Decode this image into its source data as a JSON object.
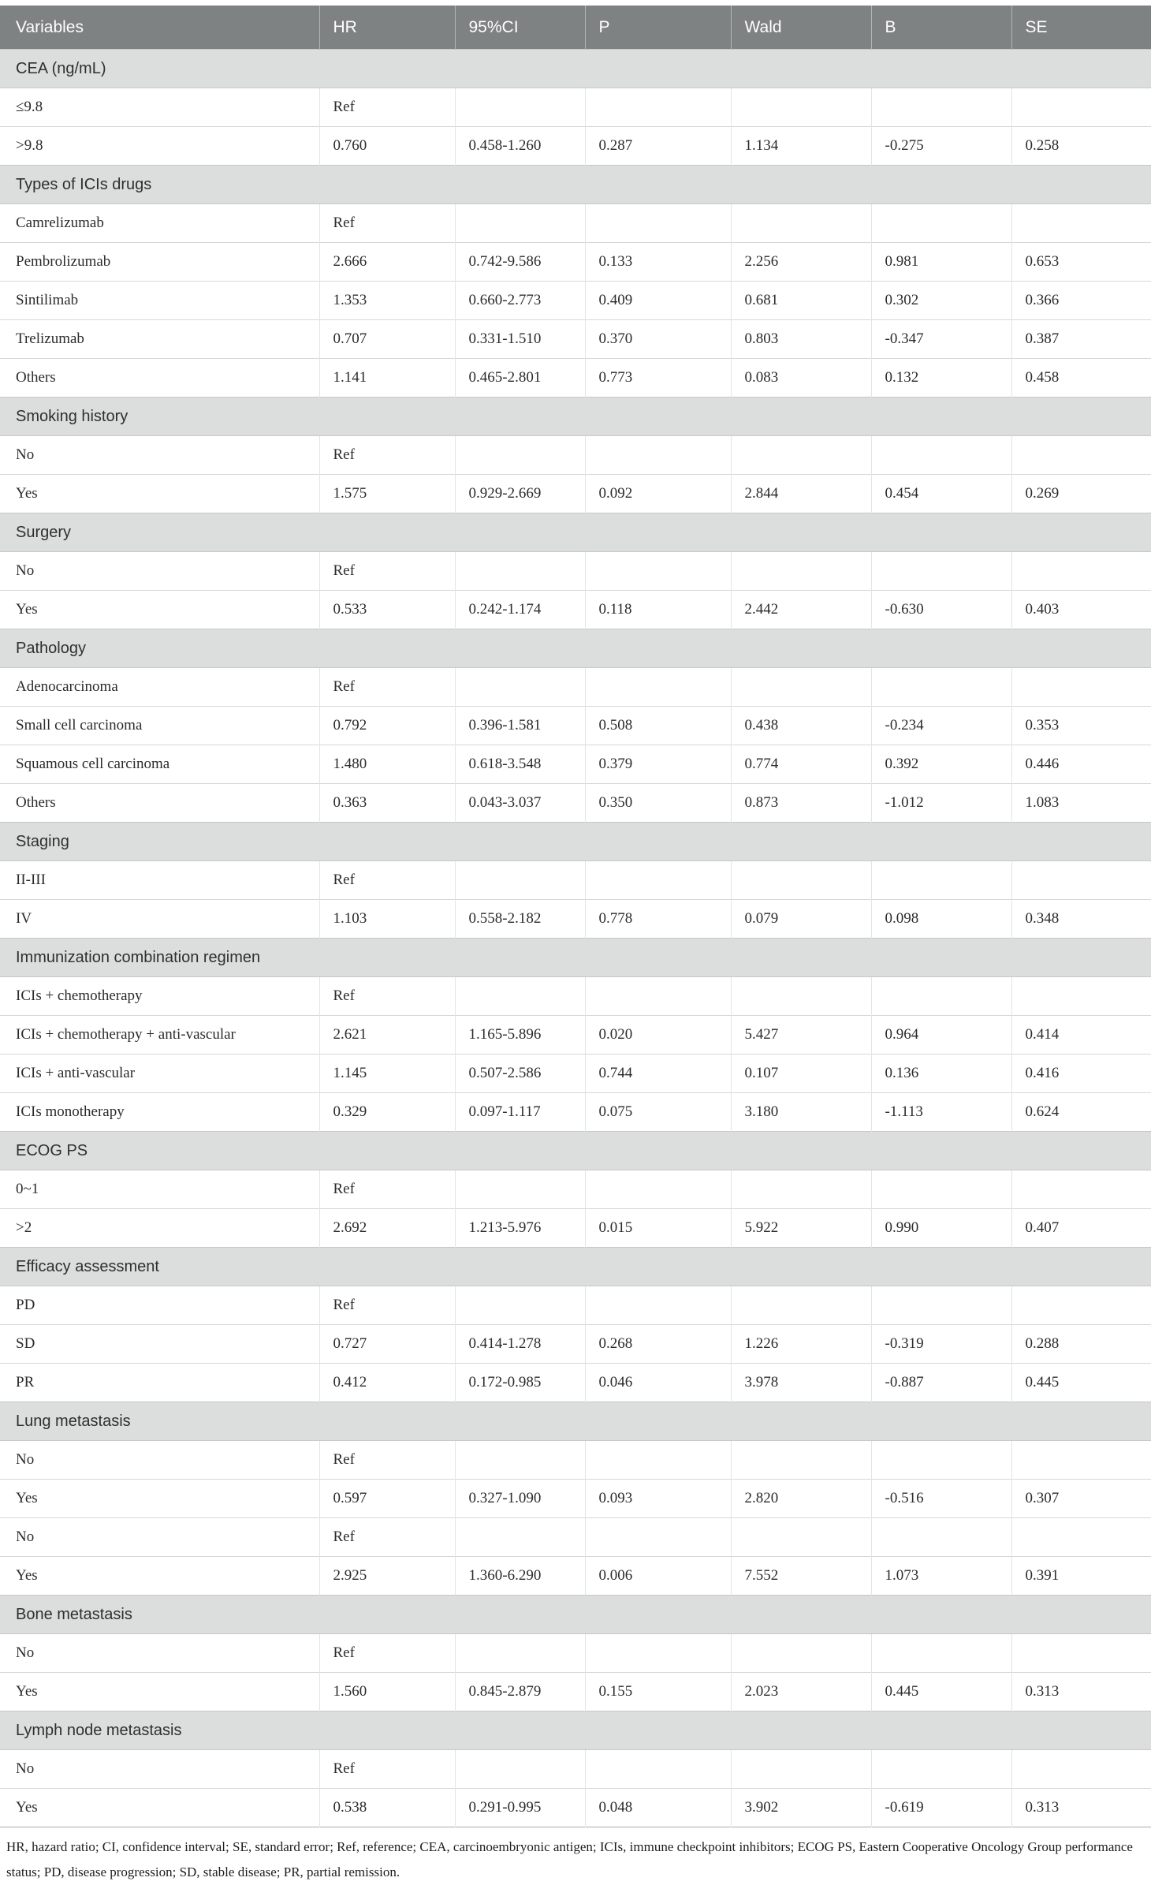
{
  "colors": {
    "header_bg": "#7e8283",
    "header_text": "#ffffff",
    "section_bg": "#dcdddd",
    "text": "#2b2b2b"
  },
  "table": {
    "columns": [
      "Variables",
      "HR",
      "95%CI",
      "P",
      "Wald",
      "B",
      "SE"
    ],
    "sections": [
      {
        "header": "CEA (ng/mL)",
        "rows": [
          [
            "≤9.8",
            "Ref",
            "",
            "",
            "",
            "",
            ""
          ],
          [
            ">9.8",
            "0.760",
            "0.458-1.260",
            "0.287",
            "1.134",
            "-0.275",
            "0.258"
          ]
        ]
      },
      {
        "header": "Types of ICIs drugs",
        "rows": [
          [
            "Camrelizumab",
            "Ref",
            "",
            "",
            "",
            "",
            ""
          ],
          [
            "Pembrolizumab",
            "2.666",
            "0.742-9.586",
            "0.133",
            "2.256",
            "0.981",
            "0.653"
          ],
          [
            "Sintilimab",
            "1.353",
            "0.660-2.773",
            "0.409",
            "0.681",
            "0.302",
            "0.366"
          ],
          [
            "Trelizumab",
            "0.707",
            "0.331-1.510",
            "0.370",
            "0.803",
            "-0.347",
            "0.387"
          ],
          [
            "Others",
            "1.141",
            "0.465-2.801",
            "0.773",
            "0.083",
            "0.132",
            "0.458"
          ]
        ]
      },
      {
        "header": "Smoking history",
        "rows": [
          [
            "No",
            "Ref",
            "",
            "",
            "",
            "",
            ""
          ],
          [
            "Yes",
            "1.575",
            "0.929-2.669",
            "0.092",
            "2.844",
            "0.454",
            "0.269"
          ]
        ]
      },
      {
        "header": "Surgery",
        "rows": [
          [
            "No",
            "Ref",
            "",
            "",
            "",
            "",
            ""
          ],
          [
            "Yes",
            "0.533",
            "0.242-1.174",
            "0.118",
            "2.442",
            "-0.630",
            "0.403"
          ]
        ]
      },
      {
        "header": "Pathology",
        "rows": [
          [
            "Adenocarcinoma",
            "Ref",
            "",
            "",
            "",
            "",
            ""
          ],
          [
            "Small cell carcinoma",
            "0.792",
            "0.396-1.581",
            "0.508",
            "0.438",
            "-0.234",
            "0.353"
          ],
          [
            "Squamous cell carcinoma",
            "1.480",
            "0.618-3.548",
            "0.379",
            "0.774",
            "0.392",
            "0.446"
          ],
          [
            "Others",
            "0.363",
            "0.043-3.037",
            "0.350",
            "0.873",
            "-1.012",
            "1.083"
          ]
        ]
      },
      {
        "header": "Staging",
        "rows": [
          [
            "II-III",
            "Ref",
            "",
            "",
            "",
            "",
            ""
          ],
          [
            "IV",
            "1.103",
            "0.558-2.182",
            "0.778",
            "0.079",
            "0.098",
            "0.348"
          ]
        ]
      },
      {
        "header": "Immunization combination regimen",
        "rows": [
          [
            "ICIs + chemotherapy",
            "Ref",
            "",
            "",
            "",
            "",
            ""
          ],
          [
            "ICIs + chemotherapy + anti-vascular",
            "2.621",
            "1.165-5.896",
            "0.020",
            "5.427",
            "0.964",
            "0.414"
          ],
          [
            "ICIs + anti-vascular",
            "1.145",
            "0.507-2.586",
            "0.744",
            "0.107",
            "0.136",
            "0.416"
          ],
          [
            "ICIs monotherapy",
            "0.329",
            "0.097-1.117",
            "0.075",
            "3.180",
            "-1.113",
            "0.624"
          ]
        ]
      },
      {
        "header": "ECOG PS",
        "rows": [
          [
            "0~1",
            "Ref",
            "",
            "",
            "",
            "",
            ""
          ],
          [
            ">2",
            "2.692",
            "1.213-5.976",
            "0.015",
            "5.922",
            "0.990",
            "0.407"
          ]
        ]
      },
      {
        "header": "Efficacy assessment",
        "rows": [
          [
            "PD",
            "Ref",
            "",
            "",
            "",
            "",
            ""
          ],
          [
            "SD",
            "0.727",
            "0.414-1.278",
            "0.268",
            "1.226",
            "-0.319",
            "0.288"
          ],
          [
            "PR",
            "0.412",
            "0.172-0.985",
            "0.046",
            "3.978",
            "-0.887",
            "0.445"
          ]
        ]
      },
      {
        "header": "Lung metastasis",
        "rows": [
          [
            "No",
            "Ref",
            "",
            "",
            "",
            "",
            ""
          ],
          [
            "Yes",
            "0.597",
            "0.327-1.090",
            "0.093",
            "2.820",
            "-0.516",
            "0.307"
          ],
          [
            "No",
            "Ref",
            "",
            "",
            "",
            "",
            ""
          ],
          [
            "Yes",
            "2.925",
            "1.360-6.290",
            "0.006",
            "7.552",
            "1.073",
            "0.391"
          ]
        ]
      },
      {
        "header": "Bone metastasis",
        "rows": [
          [
            "No",
            "Ref",
            "",
            "",
            "",
            "",
            ""
          ],
          [
            "Yes",
            "1.560",
            "0.845-2.879",
            "0.155",
            "2.023",
            "0.445",
            "0.313"
          ]
        ]
      },
      {
        "header": "Lymph node metastasis",
        "rows": [
          [
            "No",
            "Ref",
            "",
            "",
            "",
            "",
            ""
          ],
          [
            "Yes",
            "0.538",
            "0.291-0.995",
            "0.048",
            "3.902",
            "-0.619",
            "0.313"
          ]
        ]
      }
    ],
    "footnote": "HR, hazard ratio; CI, confidence interval; SE, standard error; Ref, reference; CEA, carcinoembryonic antigen; ICIs, immune checkpoint inhibitors; ECOG PS, Eastern Cooperative Oncology Group performance status; PD, disease progression; SD, stable disease; PR, partial remission."
  }
}
